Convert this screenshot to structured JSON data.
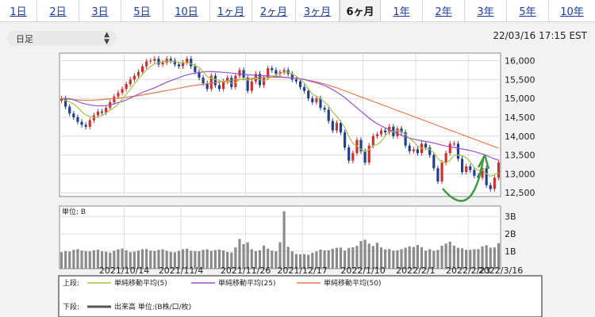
{
  "tabs": [
    {
      "label": "1日",
      "active": false
    },
    {
      "label": "2日",
      "active": false
    },
    {
      "label": "3日",
      "active": false
    },
    {
      "label": "5日",
      "active": false
    },
    {
      "label": "10日",
      "active": false
    },
    {
      "label": "1ヶ月",
      "active": false
    },
    {
      "label": "2ヶ月",
      "active": false
    },
    {
      "label": "3ヶ月",
      "active": false
    },
    {
      "label": "6ヶ月",
      "active": true
    },
    {
      "label": "1年",
      "active": false
    },
    {
      "label": "2年",
      "active": false
    },
    {
      "label": "3年",
      "active": false
    },
    {
      "label": "5年",
      "active": false
    },
    {
      "label": "10年",
      "active": false
    }
  ],
  "controls": {
    "interval_select": "日足",
    "timestamp": "22/03/16 17:15 EST"
  },
  "colors": {
    "up": "#d02f2f",
    "down": "#1f3f8c",
    "ma5": "#a7c24a",
    "ma25": "#9a4fd0",
    "ma50": "#e27a4f",
    "volume": "#8a8a8a",
    "annotation": "#3e9a3e"
  },
  "chart_data": [
    {
      "type": "candlestick",
      "ylim": [
        12400,
        16200
      ],
      "yticks": [
        16000,
        15500,
        15000,
        14500,
        14000,
        13500,
        13000,
        12500
      ],
      "ytick_labels": [
        "16,000",
        "15,500",
        "15,000",
        "14,500",
        "14,000",
        "13,500",
        "13,000",
        "12,500"
      ],
      "xlabels": [
        "2021/10/14",
        "2021/11/4",
        "2021/11/26",
        "2021/12/17",
        "2022/1/10",
        "2022/2/1",
        "2022/2/23",
        "2022/3/16"
      ],
      "close": [
        15000,
        14780,
        14600,
        14500,
        14380,
        14300,
        14250,
        14420,
        14550,
        14650,
        14620,
        14750,
        14900,
        15050,
        15150,
        15250,
        15380,
        15500,
        15600,
        15700,
        15850,
        15980,
        16000,
        16050,
        15900,
        15950,
        16050,
        16000,
        15900,
        15850,
        15950,
        16050,
        15850,
        15700,
        15550,
        15400,
        15250,
        15600,
        15350,
        15250,
        15450,
        15550,
        15300,
        15600,
        15750,
        15550,
        15200,
        15450,
        15650,
        15350,
        15550,
        15800,
        15750,
        15650,
        15700,
        15750,
        15650,
        15500,
        15450,
        15300,
        15200,
        15000,
        14900,
        15000,
        14750,
        14700,
        14400,
        14150,
        14350,
        14100,
        13700,
        13350,
        13550,
        13900,
        13600,
        13300,
        13750,
        14000,
        14050,
        14150,
        14100,
        14250,
        14000,
        14200,
        14100,
        13750,
        13600,
        13650,
        13550,
        13800,
        13700,
        13500,
        13150,
        12800,
        13300,
        13550,
        13800,
        13800,
        13400,
        13050,
        13200,
        13100,
        12950,
        12900,
        13150,
        12700,
        12600,
        12900,
        13300
      ],
      "ma5_close": [
        15000,
        14942,
        14910,
        14850,
        14760,
        14650,
        14558,
        14522,
        14498,
        14501,
        14548,
        14614,
        14688,
        14759,
        14849,
        14974,
        15109,
        15241,
        15385,
        15521,
        15639,
        15758,
        15845,
        15915,
        15947,
        15977,
        15981,
        15985,
        15972,
        15953,
        15948,
        15945,
        15918,
        15868,
        15813,
        15708,
        15574,
        15538,
        15500,
        15469,
        15434,
        15447,
        15403,
        15414,
        15492,
        15524,
        15478,
        15508,
        15523,
        15493,
        15473,
        15512,
        15595,
        15597,
        15664,
        15694,
        15699,
        15641,
        15591,
        15502,
        15408,
        15248,
        15113,
        15054,
        14989,
        14903,
        14799,
        14643,
        14528,
        14391,
        14226,
        13989,
        13807,
        13735,
        13650,
        13590,
        13639,
        13749,
        13773,
        13862,
        14007,
        14131,
        14111,
        14146,
        14126,
        14047,
        13935,
        13857,
        13741,
        13678,
        13672,
        13656,
        13565,
        13405,
        13318,
        13290,
        13357,
        13492,
        13503,
        13483,
        13433,
        13316,
        13171,
        13093,
        13101,
        13006,
        12932,
        12981,
        13025
      ],
      "ma25_close": [
        15000,
        15000,
        14990,
        14960,
        14920,
        14880,
        14850,
        14830,
        14810,
        14800,
        14800,
        14810,
        14830,
        14860,
        14890,
        14920,
        14960,
        15010,
        15060,
        15110,
        15160,
        15200,
        15240,
        15280,
        15330,
        15380,
        15430,
        15470,
        15510,
        15550,
        15590,
        15620,
        15650,
        15670,
        15690,
        15700,
        15710,
        15710,
        15705,
        15700,
        15690,
        15680,
        15670,
        15660,
        15650,
        15640,
        15630,
        15620,
        15610,
        15600,
        15600,
        15600,
        15590,
        15580,
        15570,
        15560,
        15550,
        15540,
        15530,
        15520,
        15500,
        15470,
        15440,
        15410,
        15380,
        15340,
        15290,
        15230,
        15170,
        15100,
        15020,
        14930,
        14840,
        14750,
        14660,
        14570,
        14480,
        14400,
        14330,
        14270,
        14220,
        14170,
        14120,
        14070,
        14020,
        13980,
        13950,
        13920,
        13900,
        13880,
        13860,
        13840,
        13820,
        13790,
        13760,
        13740,
        13720,
        13700,
        13680,
        13660,
        13640,
        13620,
        13590,
        13560,
        13530,
        13490,
        13440,
        13400,
        13370
      ],
      "ma50_close": [
        15000,
        14990,
        14980,
        14970,
        14960,
        14950,
        14950,
        14950,
        14955,
        14960,
        14970,
        14980,
        14990,
        15000,
        15010,
        15020,
        15030,
        15045,
        15060,
        15075,
        15090,
        15110,
        15130,
        15150,
        15170,
        15190,
        15210,
        15230,
        15250,
        15270,
        15290,
        15310,
        15330,
        15345,
        15360,
        15375,
        15390,
        15405,
        15420,
        15435,
        15450,
        15465,
        15480,
        15490,
        15500,
        15510,
        15520,
        15530,
        15540,
        15545,
        15550,
        15555,
        15560,
        15560,
        15560,
        15555,
        15550,
        15540,
        15530,
        15515,
        15500,
        15480,
        15460,
        15435,
        15410,
        15380,
        15350,
        15315,
        15280,
        15240,
        15200,
        15160,
        15120,
        15080,
        15040,
        15000,
        14960,
        14920,
        14880,
        14840,
        14800,
        14760,
        14720,
        14680,
        14640,
        14600,
        14560,
        14520,
        14480,
        14440,
        14400,
        14360,
        14320,
        14280,
        14240,
        14200,
        14160,
        14120,
        14080,
        14040,
        14000,
        13960,
        13920,
        13880,
        13840,
        13800,
        13760,
        13720,
        13680
      ]
    },
    {
      "type": "bar",
      "ylim": [
        0,
        3.6
      ],
      "yticks": [
        3,
        2,
        1
      ],
      "ytick_labels": [
        "3B",
        "2B",
        "1B"
      ],
      "unit_label": "単位: B",
      "volume": [
        0.95,
        1.01,
        0.98,
        1.08,
        1.12,
        1.04,
        1.01,
        0.99,
        1.06,
        1.09,
        1.0,
        0.97,
        0.92,
        1.03,
        1.11,
        1.16,
        1.06,
        0.95,
        0.98,
        1.04,
        1.12,
        1.13,
        1.04,
        1.02,
        1.08,
        1.11,
        1.03,
        0.96,
        0.94,
        1.02,
        1.12,
        1.15,
        1.03,
        1.01,
        1.0,
        1.08,
        1.11,
        1.02,
        1.07,
        1.1,
        1.05,
        0.96,
        0.93,
        1.22,
        1.71,
        1.41,
        1.51,
        1.12,
        1.01,
        1.06,
        1.33,
        1.15,
        1.04,
        1.0,
        1.52,
        3.3,
        1.26,
        0.99,
        0.84,
        0.82,
        0.84,
        0.8,
        0.91,
        0.99,
        1.1,
        1.05,
        1.06,
        1.14,
        1.2,
        1.21,
        1.04,
        1.19,
        1.23,
        1.31,
        1.59,
        1.66,
        1.44,
        1.3,
        1.49,
        1.22,
        1.11,
        1.13,
        1.04,
        1.06,
        1.12,
        1.2,
        1.28,
        1.25,
        1.36,
        1.24,
        1.04,
        1.12,
        1.03,
        1.08,
        1.32,
        1.44,
        1.55,
        1.32,
        1.2,
        1.17,
        1.08,
        1.08,
        1.12,
        1.12,
        1.28,
        1.35,
        1.21,
        1.22,
        1.46
      ]
    }
  ],
  "legend": {
    "top_label": "上段:",
    "bottom_label": "下段:",
    "items": [
      {
        "label": "単純移動平均(5)",
        "color_key": "ma5"
      },
      {
        "label": "単純移動平均(25)",
        "color_key": "ma25"
      },
      {
        "label": "単純移動平均(50)",
        "color_key": "ma50"
      }
    ],
    "volume_label": "出来高 単位:(B株/口/枚)"
  }
}
